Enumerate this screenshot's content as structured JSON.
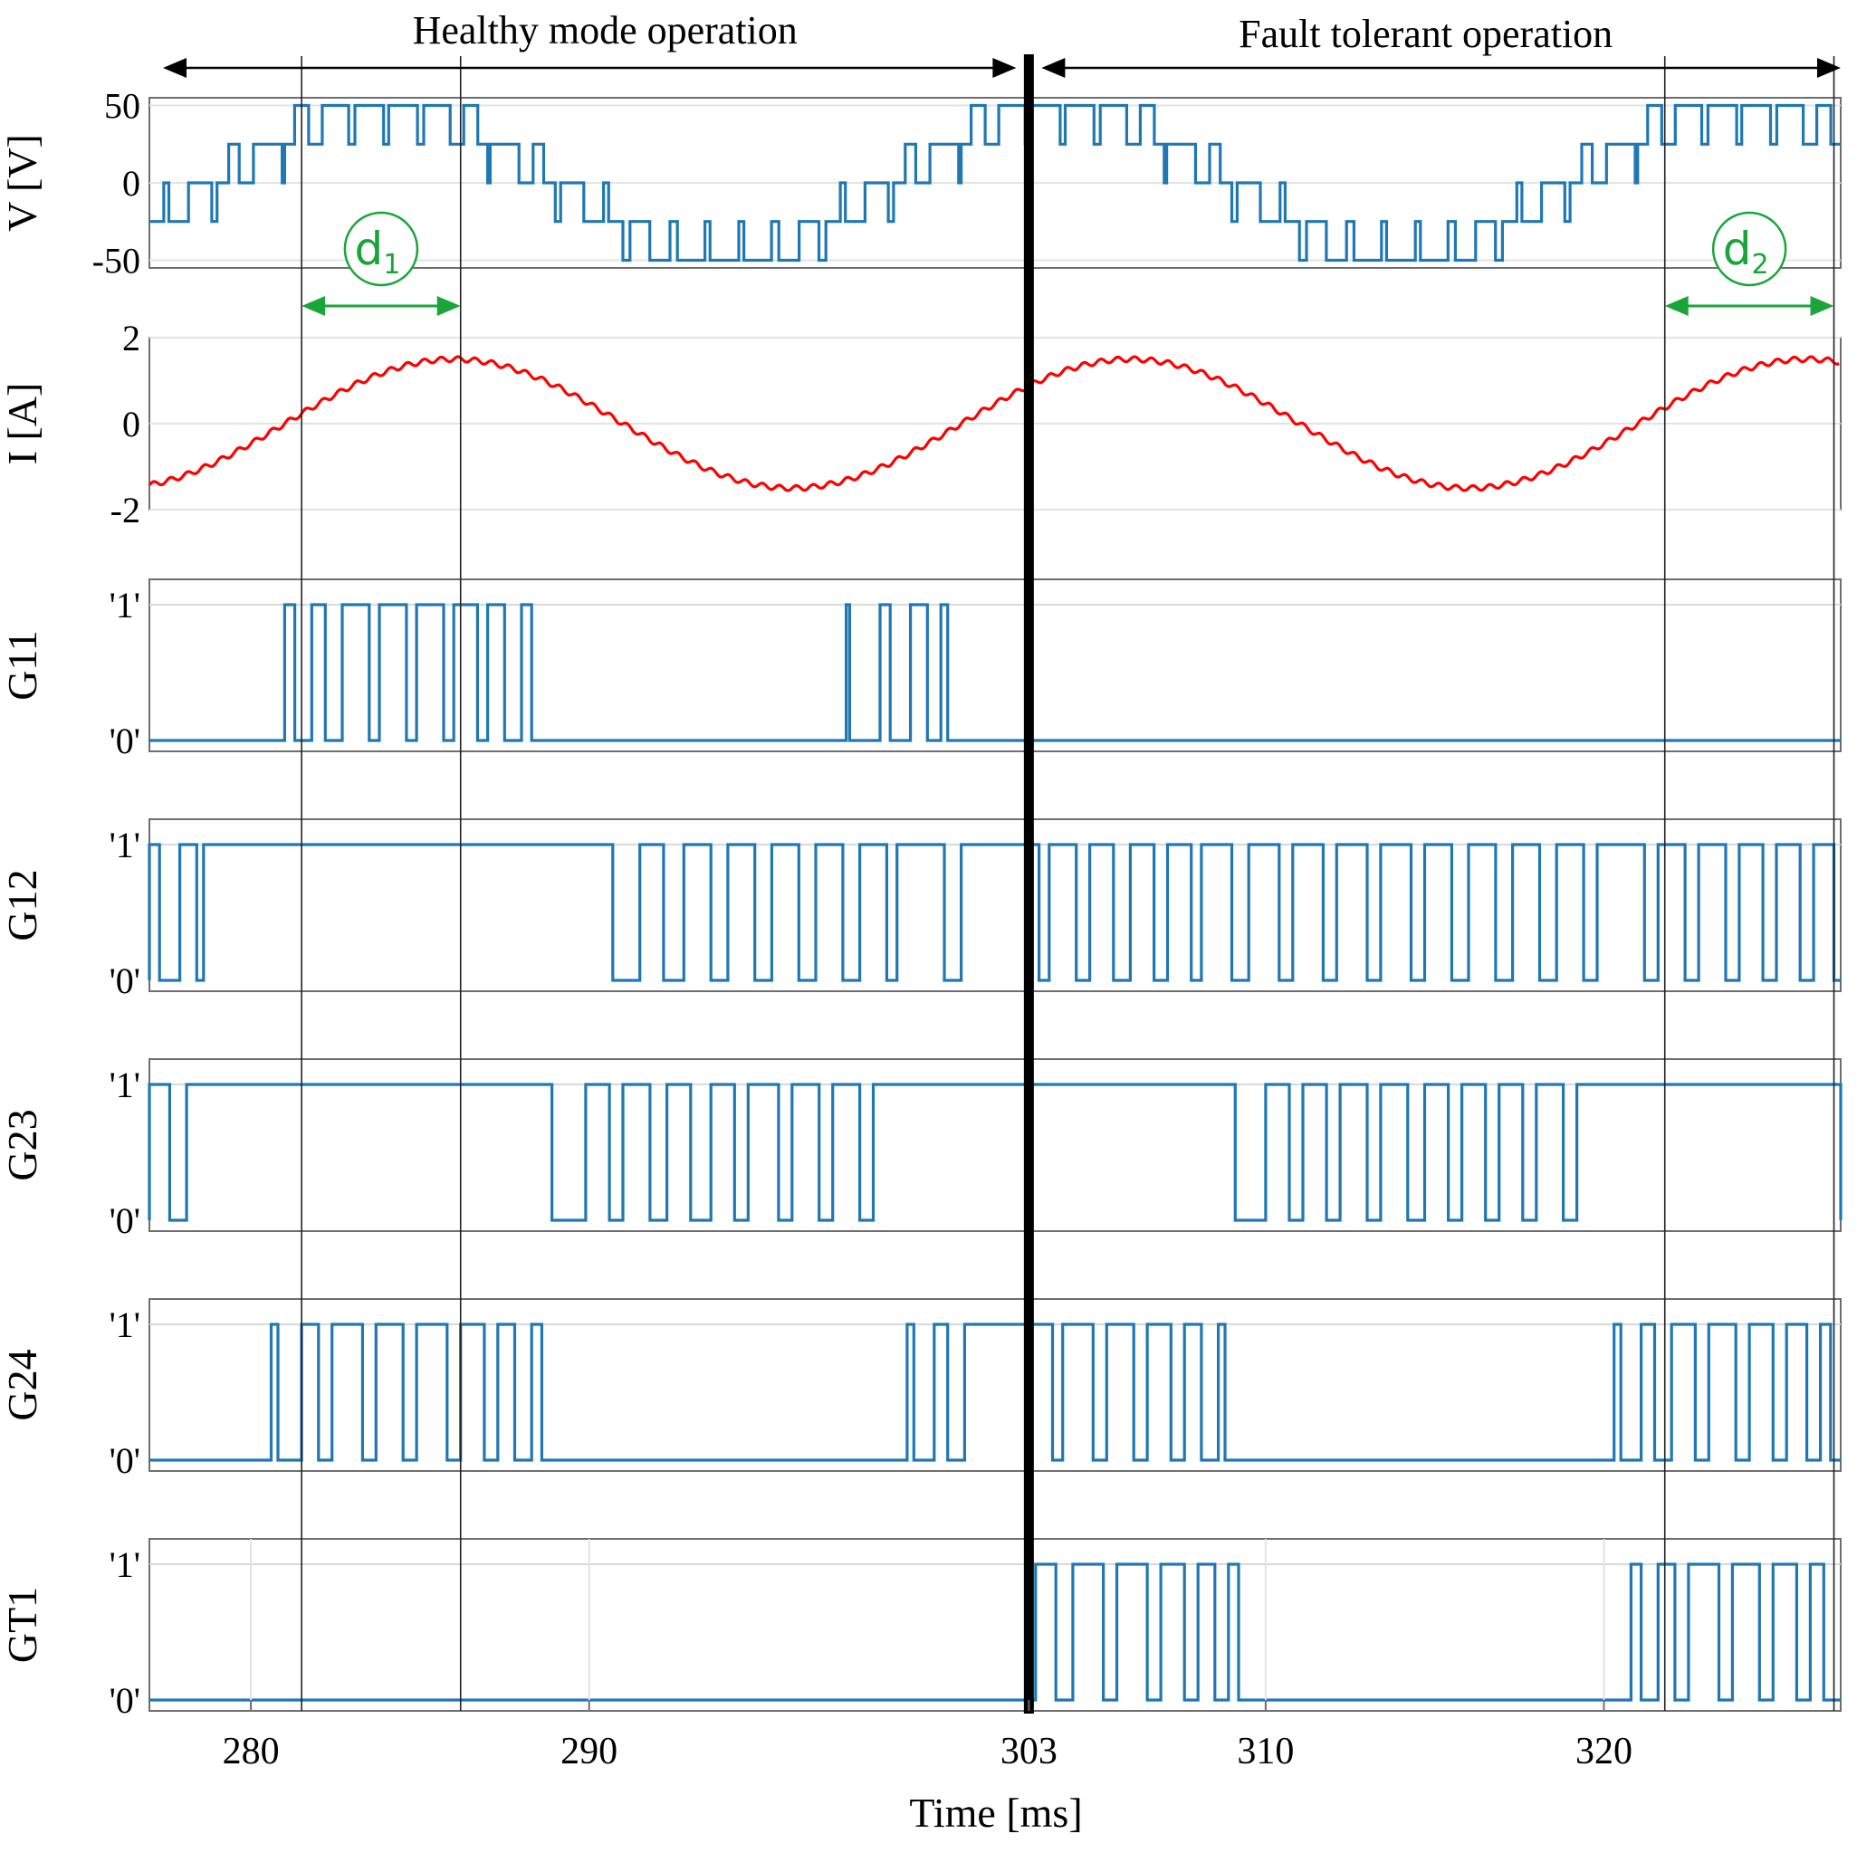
{
  "chart_data": {
    "type": "line",
    "title": "",
    "xlabel": "Time [ms]",
    "xlim": [
      277,
      327
    ],
    "x_ticks": [
      {
        "value": 280,
        "label": "280"
      },
      {
        "value": 290,
        "label": "290"
      },
      {
        "value": 303,
        "label": "303"
      },
      {
        "value": 310,
        "label": "310"
      },
      {
        "value": 320,
        "label": "320"
      }
    ],
    "fault_time_ms": 303,
    "regions": [
      {
        "label": "Healthy mode operation",
        "start": 277,
        "end": 303
      },
      {
        "label": "Fault tolerant operation",
        "start": 303,
        "end": 327
      }
    ],
    "intervals": [
      {
        "label": "d1",
        "base": "d",
        "sub": "1",
        "start": 281.5,
        "end": 286.2
      },
      {
        "label": "d2",
        "base": "d",
        "sub": "2",
        "start": 321.8,
        "end": 326.8
      }
    ],
    "series": [
      {
        "name": "V",
        "ylabel": "V [V]",
        "ylim": [
          -55,
          55
        ],
        "ticks": [
          {
            "value": 50,
            "label": "50"
          },
          {
            "value": 0,
            "label": "0"
          },
          {
            "value": -50,
            "label": "-50"
          }
        ],
        "color": "#1f77b4",
        "description": "Multilevel PWM output voltage, levels -50/-25/0/25/50 V",
        "amplitude": 50,
        "levels": [
          -50,
          -25,
          0,
          25,
          50
        ],
        "period_ms": 20,
        "zero_crossing_ms": 279,
        "switching_period_ms": 1.0
      },
      {
        "name": "I",
        "ylabel": "I [A]",
        "ylim": [
          -2,
          2
        ],
        "ticks": [
          {
            "value": 2,
            "label": "2"
          },
          {
            "value": 0,
            "label": "0"
          },
          {
            "value": -2,
            "label": "-2"
          }
        ],
        "color": "#ff0000",
        "description": "Load current, sinusoidal with ripple",
        "amplitude": 1.5,
        "period_ms": 20,
        "zero_crossing_ms": 281,
        "ripple": 0.06
      },
      {
        "name": "G11",
        "ylabel": "G11",
        "color": "#1f77b4",
        "pulses": [
          [
            281.0,
            281.3
          ],
          [
            281.8,
            282.2
          ],
          [
            282.7,
            283.5
          ],
          [
            283.8,
            284.6
          ],
          [
            284.9,
            285.7
          ],
          [
            286.0,
            286.7
          ],
          [
            287.0,
            287.5
          ],
          [
            288.0,
            288.3
          ],
          [
            297.6,
            297.7
          ],
          [
            298.6,
            298.9
          ],
          [
            299.5,
            300.0
          ],
          [
            300.4,
            300.6
          ]
        ]
      },
      {
        "name": "G12",
        "ylabel": "G12",
        "color": "#1f77b4",
        "pulses": [
          [
            277,
            277.3
          ],
          [
            277.9,
            278.4
          ],
          [
            278.6,
            290.7
          ],
          [
            291.5,
            292.2
          ],
          [
            292.8,
            293.6
          ],
          [
            294.1,
            294.9
          ],
          [
            295.4,
            296.2
          ],
          [
            296.7,
            297.5
          ],
          [
            298.0,
            298.8
          ],
          [
            299.1,
            300.5
          ],
          [
            301.0,
            303.3
          ],
          [
            303.6,
            304.4
          ],
          [
            304.8,
            305.5
          ],
          [
            306.0,
            306.7
          ],
          [
            307.1,
            307.8
          ],
          [
            308.1,
            309.0
          ],
          [
            309.5,
            310.4
          ],
          [
            310.8,
            311.7
          ],
          [
            312.1,
            313.0
          ],
          [
            313.4,
            314.3
          ],
          [
            314.7,
            315.5
          ],
          [
            316.0,
            316.8
          ],
          [
            317.3,
            318.1
          ],
          [
            318.6,
            319.4
          ],
          [
            319.8,
            321.2
          ],
          [
            321.6,
            322.4
          ],
          [
            322.8,
            323.6
          ],
          [
            324.0,
            324.7
          ],
          [
            325.1,
            325.8
          ],
          [
            326.2,
            326.8
          ]
        ]
      },
      {
        "name": "G23",
        "ylabel": "G23",
        "color": "#1f77b4",
        "pulses": [
          [
            277,
            277.6
          ],
          [
            278.1,
            288.9
          ],
          [
            289.9,
            290.6
          ],
          [
            291.0,
            291.8
          ],
          [
            292.3,
            293.0
          ],
          [
            293.6,
            294.3
          ],
          [
            294.7,
            295.6
          ],
          [
            296.0,
            296.8
          ],
          [
            297.2,
            298.0
          ],
          [
            298.4,
            309.1
          ],
          [
            310.0,
            310.7
          ],
          [
            311.1,
            311.8
          ],
          [
            312.2,
            313.0
          ],
          [
            313.4,
            314.2
          ],
          [
            314.7,
            315.4
          ],
          [
            315.8,
            316.5
          ],
          [
            316.9,
            317.6
          ],
          [
            318.0,
            318.8
          ],
          [
            319.2,
            327
          ]
        ]
      },
      {
        "name": "G24",
        "ylabel": "G24",
        "color": "#1f77b4",
        "pulses": [
          [
            280.6,
            280.8
          ],
          [
            281.5,
            282.0
          ],
          [
            282.4,
            283.3
          ],
          [
            283.7,
            284.5
          ],
          [
            284.9,
            285.8
          ],
          [
            286.2,
            286.9
          ],
          [
            287.3,
            287.8
          ],
          [
            288.3,
            288.6
          ],
          [
            299.4,
            299.6
          ],
          [
            300.2,
            300.6
          ],
          [
            301.1,
            303.7
          ],
          [
            304.0,
            304.9
          ],
          [
            305.3,
            306.1
          ],
          [
            306.5,
            307.2
          ],
          [
            307.6,
            308.1
          ],
          [
            308.6,
            308.8
          ],
          [
            320.3,
            320.5
          ],
          [
            321.1,
            321.5
          ],
          [
            322.0,
            322.7
          ],
          [
            323.1,
            323.9
          ],
          [
            324.3,
            325.0
          ],
          [
            325.4,
            326.0
          ],
          [
            326.4,
            326.7
          ]
        ]
      },
      {
        "name": "GT1",
        "ylabel": "GT1",
        "color": "#1f77b4",
        "pulses": [
          [
            303.2,
            303.8
          ],
          [
            304.3,
            305.2
          ],
          [
            305.6,
            306.5
          ],
          [
            306.9,
            307.6
          ],
          [
            308.0,
            308.5
          ],
          [
            308.9,
            309.2
          ],
          [
            320.8,
            321.1
          ],
          [
            321.6,
            322.1
          ],
          [
            322.5,
            323.4
          ],
          [
            323.8,
            324.6
          ],
          [
            325.0,
            325.7
          ],
          [
            326.1,
            326.5
          ]
        ]
      }
    ],
    "logic_labels": {
      "high": "'1'",
      "low": "'0'"
    }
  }
}
